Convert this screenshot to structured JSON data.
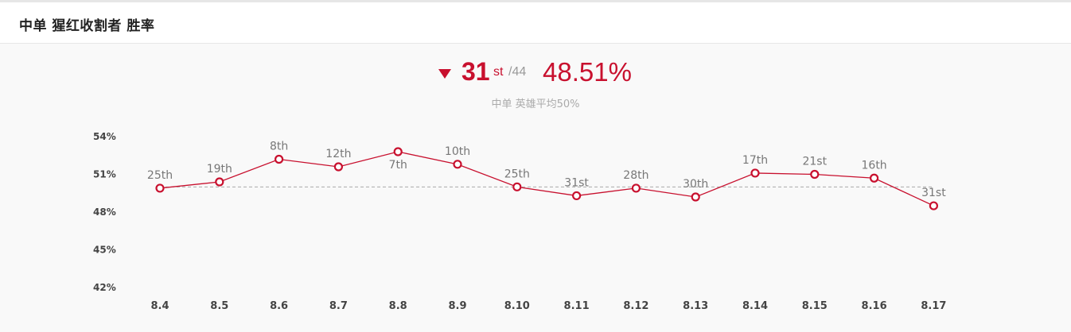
{
  "header": {
    "title": "中单 猩红收割者 胜率"
  },
  "summary": {
    "rank": "31",
    "rank_suffix": "st",
    "rank_total": "/44",
    "winrate": "48.51%",
    "avg_note": "中单 英雄平均50%",
    "trend": "down"
  },
  "colors": {
    "accent": "#c8102e",
    "reference_line": "#aaaaaa"
  },
  "chart_data": {
    "type": "line",
    "categories": [
      "8.4",
      "8.5",
      "8.6",
      "8.7",
      "8.8",
      "8.9",
      "8.10",
      "8.11",
      "8.12",
      "8.13",
      "8.14",
      "8.15",
      "8.16",
      "8.17"
    ],
    "series": [
      {
        "values": [
          49.9,
          50.4,
          52.2,
          51.6,
          52.8,
          51.8,
          50.0,
          49.3,
          49.9,
          49.2,
          51.1,
          51.0,
          50.7,
          48.5
        ],
        "point_labels": [
          "25th",
          "19th",
          "8th",
          "12th",
          "7th",
          "10th",
          "25th",
          "31st",
          "28th",
          "30th",
          "17th",
          "21st",
          "16th",
          "31st"
        ]
      }
    ],
    "y_ticks": [
      "54%",
      "51%",
      "48%",
      "45%",
      "42%"
    ],
    "ylim": [
      42,
      54
    ],
    "reference_value": 50,
    "grid": false,
    "xlabel": "",
    "ylabel": ""
  }
}
